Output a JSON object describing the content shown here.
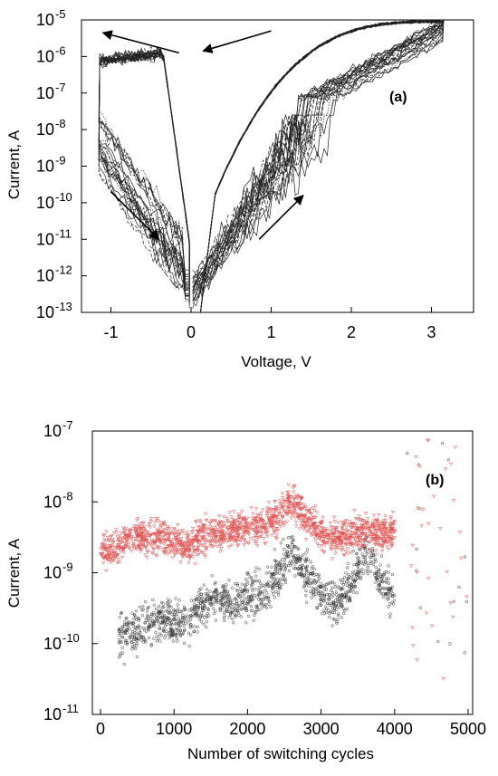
{
  "chart_data": [
    {
      "id": "a",
      "type": "line",
      "panel_label": "(a)",
      "xlabel": "Voltage, V",
      "ylabel": "Current, A",
      "xlim": [
        -1.4,
        3.5
      ],
      "ylim_exponent": [
        -13,
        -5
      ],
      "y_scale": "log",
      "x_ticks": [
        "-1",
        "0",
        "1",
        "2",
        "3"
      ],
      "x_tick_values": [
        -1,
        0,
        1,
        2,
        3
      ],
      "y_ticks": [
        {
          "base": "10",
          "exp": "-5"
        },
        {
          "base": "10",
          "exp": "-6"
        },
        {
          "base": "10",
          "exp": "-7"
        },
        {
          "base": "10",
          "exp": "-8"
        },
        {
          "base": "10",
          "exp": "-9"
        },
        {
          "base": "10",
          "exp": "-10"
        },
        {
          "base": "10",
          "exp": "-11"
        },
        {
          "base": "10",
          "exp": "-12"
        },
        {
          "base": "10",
          "exp": "-13"
        }
      ],
      "y_tick_exponents": [
        -5,
        -6,
        -7,
        -8,
        -9,
        -10,
        -11,
        -12,
        -13
      ],
      "sweep_count": 24,
      "annotations": [
        {
          "kind": "arrow",
          "from": [
            -0.15,
            -5.9
          ],
          "to": [
            -1.1,
            -5.35
          ]
        },
        {
          "kind": "arrow",
          "from": [
            1.0,
            -5.3
          ],
          "to": [
            0.15,
            -5.85
          ]
        },
        {
          "kind": "arrow",
          "from": [
            -1.0,
            -9.7
          ],
          "to": [
            -0.4,
            -11.0
          ]
        },
        {
          "kind": "arrow",
          "from": [
            0.85,
            -11.0
          ],
          "to": [
            1.4,
            -9.8
          ]
        }
      ],
      "grid": false
    },
    {
      "id": "b",
      "type": "scatter",
      "panel_label": "(b)",
      "xlabel": "Number of switching cycles",
      "ylabel": "Current, A",
      "xlim": [
        -50,
        5100
      ],
      "ylim_exponent": [
        -11,
        -7
      ],
      "y_scale": "log",
      "x_ticks": [
        "0",
        "1000",
        "2000",
        "3000",
        "4000",
        "5000"
      ],
      "x_tick_values": [
        0,
        1000,
        2000,
        3000,
        4000,
        5000
      ],
      "y_ticks": [
        {
          "base": "10",
          "exp": "-7"
        },
        {
          "base": "10",
          "exp": "-8"
        },
        {
          "base": "10",
          "exp": "-9"
        },
        {
          "base": "10",
          "exp": "-10"
        },
        {
          "base": "10",
          "exp": "-11"
        }
      ],
      "y_tick_exponents": [
        -7,
        -8,
        -9,
        -10,
        -11
      ],
      "series": [
        {
          "color": "#e05050",
          "marker": "triangle-down",
          "segments": [
            {
              "x": [
                0,
                200,
                400,
                600,
                800,
                1000,
                1200,
                1400,
                1600,
                1800,
                2000,
                2200,
                2400,
                2600,
                2800,
                3000,
                3200,
                3400,
                3600,
                3800,
                4000
              ],
              "y": [
                2.2e-09,
                2e-09,
                3.5e-09,
                3e-09,
                3.2e-09,
                3e-09,
                2.4e-09,
                3.5e-09,
                3.5e-09,
                4e-09,
                4.5e-09,
                4.5e-09,
                6e-09,
                1e-08,
                6e-09,
                3.5e-09,
                3e-09,
                3.5e-09,
                4e-09,
                3.5e-09,
                4e-09
              ]
            }
          ],
          "scatter_band": 0.35
        },
        {
          "color": "#333333",
          "marker": "circle",
          "segments": [
            {
              "x": [
                250,
                400,
                600,
                800,
                1000,
                1200,
                1400,
                1600,
                1800,
                2000,
                2200,
                2400,
                2600,
                2800,
                3000,
                3200,
                3400,
                3600,
                3800,
                4000
              ],
              "y": [
                1.3e-10,
                1.3e-10,
                1.8e-10,
                2.2e-10,
                2e-10,
                2e-10,
                3.5e-10,
                4.5e-10,
                3.5e-10,
                5e-10,
                5e-10,
                9e-10,
                2e-09,
                1e-09,
                5e-10,
                3.5e-10,
                6e-10,
                2e-09,
                8e-10,
                5e-10
              ]
            }
          ],
          "scatter_band": 0.45
        }
      ],
      "grid": false
    }
  ]
}
